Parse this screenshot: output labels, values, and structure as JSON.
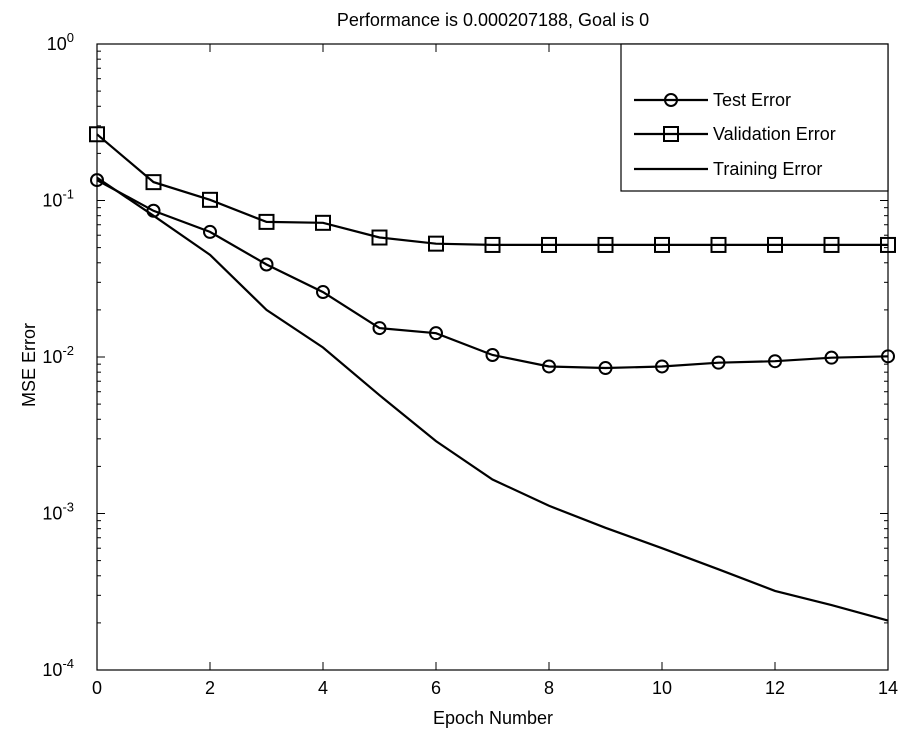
{
  "chart_data": {
    "type": "line",
    "title": "Performance is 0.000207188, Goal is 0",
    "xlabel": "Epoch Number",
    "ylabel": "MSE Error",
    "xlim": [
      0,
      14
    ],
    "ylim": [
      0.0001,
      1
    ],
    "yscale": "log",
    "grid": false,
    "legend_position": "top-right",
    "x_ticks": [
      "0",
      "2",
      "4",
      "6",
      "8",
      "10",
      "12",
      "14"
    ],
    "y_ticks": [
      {
        "base": "10",
        "exp": "0"
      },
      {
        "base": "10",
        "exp": "-1"
      },
      {
        "base": "10",
        "exp": "-2"
      },
      {
        "base": "10",
        "exp": "-3"
      },
      {
        "base": "10",
        "exp": "-4"
      }
    ],
    "x": [
      0,
      1,
      2,
      3,
      4,
      5,
      6,
      7,
      8,
      9,
      10,
      11,
      12,
      13,
      14
    ],
    "series": [
      {
        "name": "Test Error",
        "marker": "circle",
        "values": [
          0.135,
          0.086,
          0.063,
          0.039,
          0.026,
          0.0153,
          0.0142,
          0.0103,
          0.0087,
          0.0085,
          0.0087,
          0.0092,
          0.0094,
          0.0099,
          0.0101
        ]
      },
      {
        "name": "Validation Error",
        "marker": "square",
        "values": [
          0.265,
          0.131,
          0.101,
          0.073,
          0.072,
          0.058,
          0.053,
          0.052,
          0.052,
          0.052,
          0.052,
          0.052,
          0.052,
          0.052,
          0.052
        ]
      },
      {
        "name": "Training Error",
        "marker": "none",
        "values": [
          0.14,
          0.08,
          0.045,
          0.02,
          0.0115,
          0.0057,
          0.0029,
          0.00165,
          0.00112,
          0.00081,
          0.0006,
          0.00044,
          0.00032,
          0.00026,
          0.000207
        ]
      }
    ]
  }
}
